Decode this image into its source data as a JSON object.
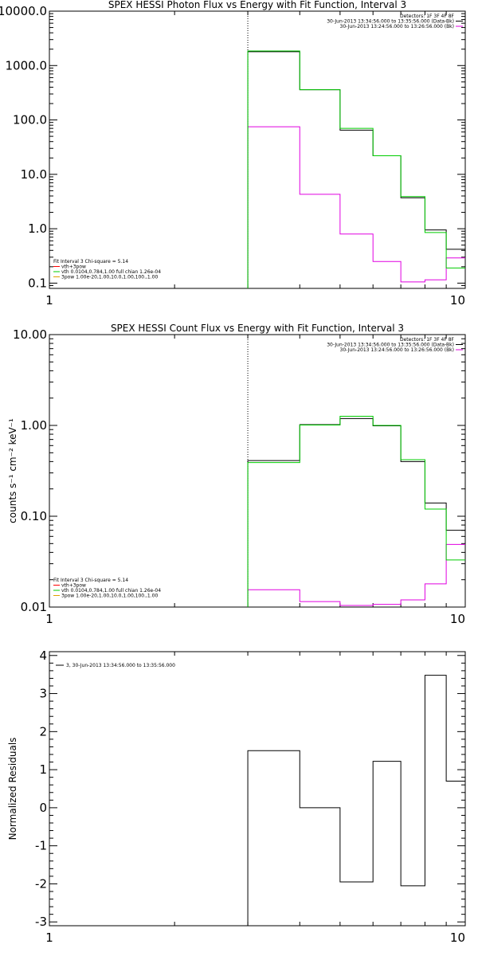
{
  "chart_data": [
    {
      "type": "line",
      "title": "SPEX HESSI Photon Flux vs Energy with Fit Function, Interval 3",
      "xlabel": "",
      "ylabel": "",
      "xscale": "log",
      "yscale": "log",
      "xlim": [
        1,
        10
      ],
      "ylim": [
        0.08,
        10000
      ],
      "x_ticks": [
        "1",
        "10"
      ],
      "y_ticks": [
        "0.1",
        "1.0",
        "10.0",
        "100.0",
        "1000.0",
        "10000.0"
      ],
      "vline": 3,
      "info": [
        "Detectors: 1F 3F 4F 8F",
        "30-Jun-2013 13:34:56.000 to 13:35:56.000 (Data-Bk)",
        "30-Jun-2013 13:24:56.000 to 13:26:56.000 (Bk)"
      ],
      "fit": [
        "Fit Interval 3    Chi-square = 5.14",
        "vth+3pow",
        "vth 0.0104,0.784,1.00   full chian 1.26e-04",
        "3pow 1.00e-20,1.00,10.0,1.00,100.,1.00"
      ],
      "edges": [
        3,
        4,
        5,
        6,
        7,
        8,
        9,
        10
      ],
      "series": [
        {
          "name": "Data-Bk",
          "color": "#000000",
          "values": [
            1800,
            360,
            65,
            22,
            3.7,
            0.95,
            0.42
          ]
        },
        {
          "name": "Bk",
          "color": "#e000e0",
          "values": [
            75,
            4.3,
            0.8,
            0.25,
            0.105,
            0.115,
            0.29
          ]
        },
        {
          "name": "vth+3pow",
          "color": "#00cc00",
          "values": [
            1850,
            360,
            70,
            22,
            3.9,
            0.85,
            0.19
          ]
        }
      ]
    },
    {
      "type": "line",
      "title": "SPEX HESSI Count Flux vs Energy with Fit Function, Interval 3",
      "xlabel": "",
      "ylabel": "counts s⁻¹ cm⁻² keV⁻¹",
      "xscale": "log",
      "yscale": "log",
      "xlim": [
        1,
        10
      ],
      "ylim": [
        0.01,
        10
      ],
      "x_ticks": [
        "1",
        "10"
      ],
      "y_ticks": [
        "0.01",
        "0.10",
        "1.00",
        "10.00"
      ],
      "vline": 3,
      "info": [
        "Detectors: 1F 3F 4F 8F",
        "30-Jun-2013 13:34:56.000 to 13:35:56.000 (Data-Bk)",
        "30-Jun-2013 13:24:56.000 to 13:26:56.000 (Bk)"
      ],
      "fit": [
        "Fit Interval 3    Chi-square = 5.14",
        "vth+3pow",
        "vth 0.0104,0.784,1.00   full chian 1.26e-04",
        "3pow 1.00e-20,1.00,10.0,1.00,100.,1.00"
      ],
      "edges": [
        3,
        4,
        5,
        6,
        7,
        8,
        9,
        10
      ],
      "series": [
        {
          "name": "Data-Bk",
          "color": "#000000",
          "values": [
            0.41,
            1.02,
            1.19,
            0.99,
            0.4,
            0.14,
            0.07
          ]
        },
        {
          "name": "Bk",
          "color": "#e000e0",
          "values": [
            0.0155,
            0.0115,
            0.0104,
            0.0107,
            0.012,
            0.018,
            0.049
          ]
        },
        {
          "name": "vth+3pow",
          "color": "#00cc00",
          "values": [
            0.39,
            1.01,
            1.26,
            1.0,
            0.42,
            0.12,
            0.033
          ]
        }
      ]
    },
    {
      "type": "line",
      "title": "",
      "xlabel": "",
      "ylabel": "Normalized  Residuals",
      "xscale": "log",
      "yscale": "linear",
      "xlim": [
        1,
        10
      ],
      "ylim": [
        -3.1,
        4.1
      ],
      "x_ticks": [
        "1",
        "10"
      ],
      "y_ticks": [
        "-3",
        "-2",
        "-1",
        "0",
        "1",
        "2",
        "3",
        "4"
      ],
      "legend": "3, 30-Jun-2013 13:34:56.000 to 13:35:56.000",
      "edges": [
        3,
        4,
        5,
        6,
        7,
        8,
        9,
        10
      ],
      "series": [
        {
          "name": "3, 30-Jun-2013 13:34:56.000 to 13:35:56.000",
          "color": "#000000",
          "values": [
            1.5,
            0.0,
            -1.95,
            1.22,
            -2.05,
            3.48,
            0.7
          ]
        }
      ]
    }
  ]
}
